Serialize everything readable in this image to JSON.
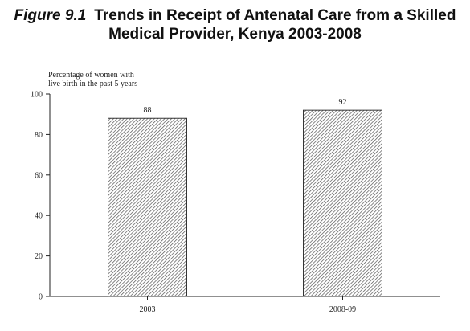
{
  "figure": {
    "number": "Figure 9.1",
    "title_line1": "Trends in Receipt of Antenatal Care from a Skilled",
    "title_line2": "Medical Provider, Kenya 2003-2008"
  },
  "chart_data": {
    "type": "bar",
    "title": "Figure 9.1 Trends in Receipt of Antenatal Care from a Skilled Medical Provider, Kenya 2003-2008",
    "ylabel_lines": [
      "Percentage of women with",
      "live birth in the past 5 years"
    ],
    "xlabel": "",
    "categories": [
      "2003",
      "2008-09"
    ],
    "values": [
      88,
      92
    ],
    "value_labels": [
      "88",
      "92"
    ],
    "ylim": [
      0,
      100
    ],
    "yticks": [
      0,
      20,
      40,
      60,
      80,
      100
    ],
    "ytick_labels": [
      "0",
      "20",
      "40",
      "60",
      "80",
      "100"
    ],
    "grid": false,
    "legend": "none",
    "bar_fill": "hatched",
    "bar_color": "#555555"
  }
}
